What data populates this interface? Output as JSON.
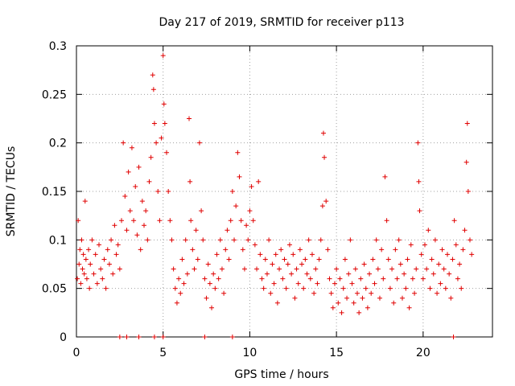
{
  "chart_data": {
    "type": "scatter",
    "title": "Day 217 of 2019, SRMTID for receiver p113",
    "xlabel": "GPS time / hours",
    "ylabel": "SRMTID / TECUs",
    "xlim": [
      0,
      24
    ],
    "ylim": [
      0,
      0.3
    ],
    "x_ticks": [
      0,
      5,
      10,
      15,
      20
    ],
    "x_tick_labels": [
      "0",
      "5",
      "10",
      "15",
      "20"
    ],
    "y_ticks": [
      0,
      0.05,
      0.1,
      0.15,
      0.2,
      0.25,
      0.3
    ],
    "y_tick_labels": [
      "0",
      "0.05",
      "0.1",
      "0.15",
      "0.2",
      "0.25",
      "0.3"
    ],
    "grid": true,
    "legend": "none",
    "marker": "+",
    "color": "#e00000",
    "series": [
      {
        "name": "p113",
        "points": [
          [
            0.05,
            0.06
          ],
          [
            0.1,
            0.12
          ],
          [
            0.15,
            0.075
          ],
          [
            0.2,
            0.09
          ],
          [
            0.25,
            0.055
          ],
          [
            0.3,
            0.1
          ],
          [
            0.35,
            0.07
          ],
          [
            0.4,
            0.085
          ],
          [
            0.45,
            0.065
          ],
          [
            0.5,
            0.14
          ],
          [
            0.55,
            0.08
          ],
          [
            0.6,
            0.06
          ],
          [
            0.7,
            0.09
          ],
          [
            0.75,
            0.05
          ],
          [
            0.8,
            0.075
          ],
          [
            0.9,
            0.1
          ],
          [
            1.0,
            0.065
          ],
          [
            1.1,
            0.085
          ],
          [
            1.2,
            0.055
          ],
          [
            1.3,
            0.095
          ],
          [
            1.4,
            0.07
          ],
          [
            1.5,
            0.06
          ],
          [
            1.6,
            0.08
          ],
          [
            1.7,
            0.05
          ],
          [
            1.8,
            0.09
          ],
          [
            1.9,
            0.075
          ],
          [
            2.0,
            0.1
          ],
          [
            2.1,
            0.065
          ],
          [
            2.2,
            0.115
          ],
          [
            2.3,
            0.085
          ],
          [
            2.4,
            0.095
          ],
          [
            2.5,
            0.07
          ],
          [
            2.6,
            0.12
          ],
          [
            2.7,
            0.2
          ],
          [
            2.8,
            0.145
          ],
          [
            2.9,
            0.11
          ],
          [
            3.0,
            0.17
          ],
          [
            3.1,
            0.13
          ],
          [
            3.2,
            0.195
          ],
          [
            3.3,
            0.12
          ],
          [
            3.4,
            0.155
          ],
          [
            3.5,
            0.105
          ],
          [
            3.6,
            0.175
          ],
          [
            3.7,
            0.09
          ],
          [
            3.8,
            0.14
          ],
          [
            3.9,
            0.115
          ],
          [
            4.0,
            0.13
          ],
          [
            4.1,
            0.1
          ],
          [
            4.2,
            0.16
          ],
          [
            4.3,
            0.185
          ],
          [
            4.4,
            0.27
          ],
          [
            4.45,
            0.255
          ],
          [
            4.5,
            0.22
          ],
          [
            4.6,
            0.2
          ],
          [
            4.7,
            0.15
          ],
          [
            4.8,
            0.12
          ],
          [
            4.9,
            0.205
          ],
          [
            5.0,
            0.29
          ],
          [
            5.05,
            0.24
          ],
          [
            5.1,
            0.22
          ],
          [
            5.2,
            0.19
          ],
          [
            5.3,
            0.15
          ],
          [
            5.4,
            0.12
          ],
          [
            5.5,
            0.1
          ],
          [
            5.6,
            0.07
          ],
          [
            5.7,
            0.05
          ],
          [
            5.8,
            0.035
          ],
          [
            5.9,
            0.06
          ],
          [
            6.0,
            0.045
          ],
          [
            6.1,
            0.08
          ],
          [
            6.2,
            0.055
          ],
          [
            6.3,
            0.1
          ],
          [
            6.4,
            0.065
          ],
          [
            6.5,
            0.225
          ],
          [
            6.55,
            0.16
          ],
          [
            6.6,
            0.12
          ],
          [
            6.7,
            0.09
          ],
          [
            6.8,
            0.07
          ],
          [
            6.9,
            0.11
          ],
          [
            7.0,
            0.08
          ],
          [
            7.1,
            0.2
          ],
          [
            7.2,
            0.13
          ],
          [
            7.3,
            0.1
          ],
          [
            7.4,
            0.06
          ],
          [
            7.5,
            0.04
          ],
          [
            7.6,
            0.075
          ],
          [
            7.7,
            0.055
          ],
          [
            7.8,
            0.03
          ],
          [
            7.9,
            0.065
          ],
          [
            8.0,
            0.05
          ],
          [
            8.1,
            0.085
          ],
          [
            8.2,
            0.06
          ],
          [
            8.3,
            0.1
          ],
          [
            8.4,
            0.07
          ],
          [
            8.5,
            0.045
          ],
          [
            8.6,
            0.09
          ],
          [
            8.7,
            0.11
          ],
          [
            8.8,
            0.08
          ],
          [
            8.9,
            0.12
          ],
          [
            9.0,
            0.15
          ],
          [
            9.1,
            0.1
          ],
          [
            9.2,
            0.135
          ],
          [
            9.3,
            0.19
          ],
          [
            9.4,
            0.165
          ],
          [
            9.5,
            0.12
          ],
          [
            9.6,
            0.09
          ],
          [
            9.7,
            0.07
          ],
          [
            9.8,
            0.115
          ],
          [
            9.9,
            0.1
          ],
          [
            10.0,
            0.13
          ],
          [
            10.1,
            0.155
          ],
          [
            10.2,
            0.12
          ],
          [
            10.3,
            0.095
          ],
          [
            10.4,
            0.07
          ],
          [
            10.5,
            0.16
          ],
          [
            10.6,
            0.085
          ],
          [
            10.7,
            0.06
          ],
          [
            10.8,
            0.05
          ],
          [
            10.9,
            0.08
          ],
          [
            11.0,
            0.065
          ],
          [
            11.1,
            0.1
          ],
          [
            11.2,
            0.045
          ],
          [
            11.3,
            0.075
          ],
          [
            11.4,
            0.055
          ],
          [
            11.5,
            0.085
          ],
          [
            11.6,
            0.035
          ],
          [
            11.7,
            0.07
          ],
          [
            11.8,
            0.09
          ],
          [
            11.9,
            0.06
          ],
          [
            12.0,
            0.08
          ],
          [
            12.1,
            0.05
          ],
          [
            12.2,
            0.075
          ],
          [
            12.3,
            0.095
          ],
          [
            12.4,
            0.065
          ],
          [
            12.5,
            0.085
          ],
          [
            12.6,
            0.04
          ],
          [
            12.7,
            0.07
          ],
          [
            12.8,
            0.055
          ],
          [
            12.9,
            0.09
          ],
          [
            13.0,
            0.075
          ],
          [
            13.1,
            0.05
          ],
          [
            13.2,
            0.08
          ],
          [
            13.3,
            0.065
          ],
          [
            13.4,
            0.1
          ],
          [
            13.5,
            0.06
          ],
          [
            13.6,
            0.085
          ],
          [
            13.7,
            0.045
          ],
          [
            13.8,
            0.07
          ],
          [
            13.9,
            0.055
          ],
          [
            14.0,
            0.08
          ],
          [
            14.1,
            0.1
          ],
          [
            14.2,
            0.135
          ],
          [
            14.25,
            0.21
          ],
          [
            14.3,
            0.185
          ],
          [
            14.4,
            0.14
          ],
          [
            14.5,
            0.09
          ],
          [
            14.6,
            0.06
          ],
          [
            14.7,
            0.045
          ],
          [
            14.8,
            0.03
          ],
          [
            14.9,
            0.055
          ],
          [
            15.0,
            0.07
          ],
          [
            15.1,
            0.035
          ],
          [
            15.2,
            0.06
          ],
          [
            15.3,
            0.025
          ],
          [
            15.4,
            0.05
          ],
          [
            15.5,
            0.08
          ],
          [
            15.6,
            0.04
          ],
          [
            15.7,
            0.065
          ],
          [
            15.8,
            0.1
          ],
          [
            15.9,
            0.055
          ],
          [
            16.0,
            0.035
          ],
          [
            16.1,
            0.07
          ],
          [
            16.2,
            0.045
          ],
          [
            16.3,
            0.025
          ],
          [
            16.4,
            0.06
          ],
          [
            16.5,
            0.04
          ],
          [
            16.6,
            0.075
          ],
          [
            16.7,
            0.05
          ],
          [
            16.8,
            0.03
          ],
          [
            16.9,
            0.065
          ],
          [
            17.0,
            0.045
          ],
          [
            17.1,
            0.08
          ],
          [
            17.2,
            0.055
          ],
          [
            17.3,
            0.1
          ],
          [
            17.4,
            0.07
          ],
          [
            17.5,
            0.04
          ],
          [
            17.6,
            0.09
          ],
          [
            17.7,
            0.06
          ],
          [
            17.8,
            0.165
          ],
          [
            17.9,
            0.12
          ],
          [
            18.0,
            0.08
          ],
          [
            18.1,
            0.05
          ],
          [
            18.2,
            0.07
          ],
          [
            18.3,
            0.035
          ],
          [
            18.4,
            0.09
          ],
          [
            18.5,
            0.06
          ],
          [
            18.6,
            0.1
          ],
          [
            18.7,
            0.075
          ],
          [
            18.8,
            0.04
          ],
          [
            18.9,
            0.065
          ],
          [
            19.0,
            0.05
          ],
          [
            19.1,
            0.08
          ],
          [
            19.2,
            0.03
          ],
          [
            19.3,
            0.095
          ],
          [
            19.4,
            0.06
          ],
          [
            19.5,
            0.045
          ],
          [
            19.6,
            0.07
          ],
          [
            19.7,
            0.2
          ],
          [
            19.75,
            0.16
          ],
          [
            19.8,
            0.13
          ],
          [
            19.9,
            0.085
          ],
          [
            20.0,
            0.06
          ],
          [
            20.1,
            0.095
          ],
          [
            20.2,
            0.07
          ],
          [
            20.3,
            0.11
          ],
          [
            20.4,
            0.05
          ],
          [
            20.5,
            0.08
          ],
          [
            20.6,
            0.065
          ],
          [
            20.7,
            0.1
          ],
          [
            20.8,
            0.045
          ],
          [
            20.9,
            0.075
          ],
          [
            21.0,
            0.055
          ],
          [
            21.1,
            0.09
          ],
          [
            21.2,
            0.07
          ],
          [
            21.3,
            0.05
          ],
          [
            21.4,
            0.085
          ],
          [
            21.5,
            0.065
          ],
          [
            21.6,
            0.04
          ],
          [
            21.7,
            0.08
          ],
          [
            21.8,
            0.12
          ],
          [
            21.9,
            0.095
          ],
          [
            22.0,
            0.06
          ],
          [
            22.1,
            0.075
          ],
          [
            22.2,
            0.05
          ],
          [
            22.3,
            0.09
          ],
          [
            22.4,
            0.11
          ],
          [
            22.5,
            0.18
          ],
          [
            22.55,
            0.22
          ],
          [
            22.6,
            0.15
          ],
          [
            22.7,
            0.1
          ],
          [
            22.8,
            0.085
          ],
          [
            2.5,
            0
          ],
          [
            2.9,
            0
          ],
          [
            3.6,
            0
          ],
          [
            4.5,
            0
          ],
          [
            5.0,
            0
          ],
          [
            7.4,
            0
          ],
          [
            9.0,
            0
          ],
          [
            21.75,
            0
          ]
        ]
      }
    ]
  }
}
